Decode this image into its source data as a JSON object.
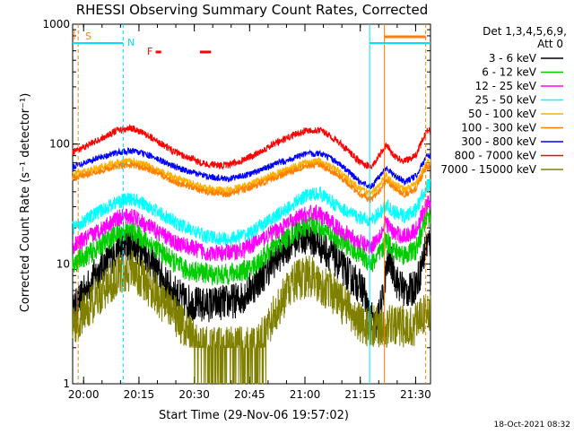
{
  "chart_data": {
    "type": "line",
    "title": "RHESSI Observing Summary Count Rates, Corrected",
    "xlabel": "Start Time (29-Nov-06 19:57:02)",
    "ylabel": "Corrected Count Rate (s⁻¹ detector⁻¹)",
    "x_unit": "minutes after 19:57:02",
    "xlim": [
      0,
      97
    ],
    "ylim": [
      1,
      1000
    ],
    "y_scale": "log",
    "grid": false,
    "x_ticks": [
      {
        "m": 2.97,
        "label": "20:00"
      },
      {
        "m": 17.97,
        "label": "20:15"
      },
      {
        "m": 32.97,
        "label": "20:30"
      },
      {
        "m": 47.97,
        "label": "20:45"
      },
      {
        "m": 62.97,
        "label": "21:00"
      },
      {
        "m": 77.97,
        "label": "21:15"
      },
      {
        "m": 92.97,
        "label": "21:30"
      }
    ],
    "y_ticks": [
      {
        "v": 1,
        "label": "1"
      },
      {
        "v": 10,
        "label": "10"
      },
      {
        "v": 100,
        "label": "100"
      },
      {
        "v": 1000,
        "label": "1000"
      }
    ],
    "legend": {
      "placement": "right",
      "header": [
        "Det 1,3,4,5,6,9,",
        "Att 0"
      ]
    },
    "series": [
      {
        "name": "3 - 6 keV",
        "color": "#000000",
        "noise": 0.25,
        "points": [
          [
            0,
            4
          ],
          [
            6,
            8
          ],
          [
            12,
            13
          ],
          [
            16,
            15
          ],
          [
            20,
            12
          ],
          [
            25,
            7
          ],
          [
            30,
            5
          ],
          [
            35,
            4.5
          ],
          [
            45,
            5
          ],
          [
            50,
            7
          ],
          [
            55,
            11
          ],
          [
            60,
            16
          ],
          [
            64,
            17
          ],
          [
            70,
            12
          ],
          [
            75,
            8
          ],
          [
            79,
            6
          ],
          [
            80,
            4
          ],
          [
            82,
            3
          ],
          [
            84,
            5
          ],
          [
            85,
            9
          ],
          [
            86,
            11
          ],
          [
            88,
            7
          ],
          [
            90,
            6
          ],
          [
            92,
            6
          ],
          [
            94,
            8
          ],
          [
            96,
            15
          ]
        ]
      },
      {
        "name": "6 - 12 keV",
        "color": "#00cc00",
        "noise": 0.15,
        "points": [
          [
            0,
            10
          ],
          [
            6,
            13
          ],
          [
            12,
            18
          ],
          [
            16,
            19
          ],
          [
            22,
            14
          ],
          [
            30,
            9
          ],
          [
            40,
            8
          ],
          [
            48,
            9
          ],
          [
            55,
            14
          ],
          [
            62,
            20
          ],
          [
            66,
            21
          ],
          [
            72,
            16
          ],
          [
            78,
            12
          ],
          [
            81,
            10
          ],
          [
            84,
            13
          ],
          [
            85,
            16
          ],
          [
            87,
            13
          ],
          [
            90,
            12
          ],
          [
            93,
            13
          ],
          [
            96,
            25
          ]
        ]
      },
      {
        "name": "12 - 25 keV",
        "color": "#ff00ff",
        "noise": 0.12,
        "points": [
          [
            0,
            14
          ],
          [
            6,
            18
          ],
          [
            12,
            24
          ],
          [
            16,
            25
          ],
          [
            20,
            21
          ],
          [
            28,
            15
          ],
          [
            38,
            12
          ],
          [
            46,
            13
          ],
          [
            54,
            18
          ],
          [
            62,
            25
          ],
          [
            66,
            27
          ],
          [
            72,
            20
          ],
          [
            78,
            15
          ],
          [
            81,
            14
          ],
          [
            84,
            19
          ],
          [
            85,
            22
          ],
          [
            87,
            18
          ],
          [
            90,
            17
          ],
          [
            93,
            19
          ],
          [
            96,
            32
          ]
        ]
      },
      {
        "name": "25 - 50 keV",
        "color": "#00ffff",
        "noise": 0.1,
        "points": [
          [
            0,
            20
          ],
          [
            6,
            26
          ],
          [
            12,
            33
          ],
          [
            16,
            35
          ],
          [
            20,
            31
          ],
          [
            28,
            22
          ],
          [
            36,
            17
          ],
          [
            42,
            16
          ],
          [
            48,
            18
          ],
          [
            56,
            26
          ],
          [
            63,
            37
          ],
          [
            67,
            39
          ],
          [
            72,
            30
          ],
          [
            78,
            24
          ],
          [
            81,
            23
          ],
          [
            84,
            28
          ],
          [
            85,
            31
          ],
          [
            87,
            27
          ],
          [
            90,
            25
          ],
          [
            93,
            28
          ],
          [
            96,
            45
          ]
        ]
      },
      {
        "name": "50 - 100 keV",
        "color": "#ffb000",
        "noise": 0.05,
        "points": [
          [
            0,
            55
          ],
          [
            6,
            62
          ],
          [
            12,
            70
          ],
          [
            16,
            72
          ],
          [
            20,
            67
          ],
          [
            28,
            52
          ],
          [
            36,
            43
          ],
          [
            42,
            41
          ],
          [
            48,
            46
          ],
          [
            56,
            58
          ],
          [
            63,
            70
          ],
          [
            67,
            72
          ],
          [
            72,
            60
          ],
          [
            78,
            42
          ],
          [
            81,
            38
          ],
          [
            84,
            50
          ],
          [
            85,
            55
          ],
          [
            87,
            47
          ],
          [
            90,
            42
          ],
          [
            93,
            46
          ],
          [
            96,
            70
          ]
        ]
      },
      {
        "name": "100 - 300 keV",
        "color": "#ff8000",
        "noise": 0.045,
        "points": [
          [
            0,
            52
          ],
          [
            6,
            58
          ],
          [
            12,
            65
          ],
          [
            16,
            67
          ],
          [
            20,
            63
          ],
          [
            28,
            48
          ],
          [
            36,
            40
          ],
          [
            42,
            38
          ],
          [
            48,
            43
          ],
          [
            56,
            54
          ],
          [
            63,
            65
          ],
          [
            67,
            67
          ],
          [
            72,
            55
          ],
          [
            78,
            38
          ],
          [
            81,
            34
          ],
          [
            84,
            45
          ],
          [
            85,
            50
          ],
          [
            87,
            43
          ],
          [
            90,
            38
          ],
          [
            93,
            42
          ],
          [
            96,
            65
          ]
        ]
      },
      {
        "name": "300 - 800 keV",
        "color": "#0000ff",
        "noise": 0.045,
        "points": [
          [
            0,
            65
          ],
          [
            6,
            75
          ],
          [
            12,
            85
          ],
          [
            16,
            88
          ],
          [
            20,
            82
          ],
          [
            28,
            64
          ],
          [
            36,
            54
          ],
          [
            42,
            51
          ],
          [
            48,
            56
          ],
          [
            56,
            70
          ],
          [
            63,
            82
          ],
          [
            67,
            84
          ],
          [
            72,
            70
          ],
          [
            78,
            48
          ],
          [
            81,
            44
          ],
          [
            84,
            58
          ],
          [
            85,
            64
          ],
          [
            87,
            55
          ],
          [
            90,
            48
          ],
          [
            93,
            54
          ],
          [
            96,
            80
          ]
        ]
      },
      {
        "name": "800 - 7000 keV",
        "color": "#ff0000",
        "noise": 0.05,
        "points": [
          [
            0,
            85
          ],
          [
            6,
            105
          ],
          [
            12,
            130
          ],
          [
            16,
            135
          ],
          [
            20,
            120
          ],
          [
            28,
            85
          ],
          [
            36,
            68
          ],
          [
            42,
            66
          ],
          [
            48,
            78
          ],
          [
            56,
            105
          ],
          [
            63,
            130
          ],
          [
            67,
            132
          ],
          [
            72,
            105
          ],
          [
            78,
            70
          ],
          [
            81,
            64
          ],
          [
            84,
            88
          ],
          [
            85,
            98
          ],
          [
            87,
            80
          ],
          [
            90,
            72
          ],
          [
            93,
            80
          ],
          [
            96,
            130
          ]
        ]
      },
      {
        "name": "7000 - 15000 keV",
        "color": "#808000",
        "noise": 0.3,
        "floor": 2,
        "points": [
          [
            0,
            3
          ],
          [
            6,
            5
          ],
          [
            12,
            8
          ],
          [
            16,
            9
          ],
          [
            22,
            6
          ],
          [
            30,
            3
          ],
          [
            35,
            2
          ],
          [
            50,
            2
          ],
          [
            55,
            4
          ],
          [
            60,
            7
          ],
          [
            64,
            8
          ],
          [
            70,
            6
          ],
          [
            75,
            4
          ],
          [
            79,
            3
          ],
          [
            84,
            3
          ],
          [
            88,
            3
          ],
          [
            92,
            3
          ],
          [
            96,
            4
          ]
        ]
      }
    ],
    "annotations": {
      "attenuator_label": "S",
      "night_label": "N",
      "flare_label": "F"
    },
    "vlines": [
      {
        "m": 1.5,
        "color": "#ff8000",
        "dashed": true
      },
      {
        "m": 13.7,
        "color": "#00e0ff",
        "dashed": true
      },
      {
        "m": 80.5,
        "color": "#00e0ff",
        "dashed": false
      },
      {
        "m": 84.5,
        "color": "#ff8000",
        "dashed": false
      },
      {
        "m": 95.7,
        "color": "#ff8000",
        "dashed": true
      }
    ]
  },
  "footer": {
    "timestamp": "18-Oct-2021 08:32"
  }
}
